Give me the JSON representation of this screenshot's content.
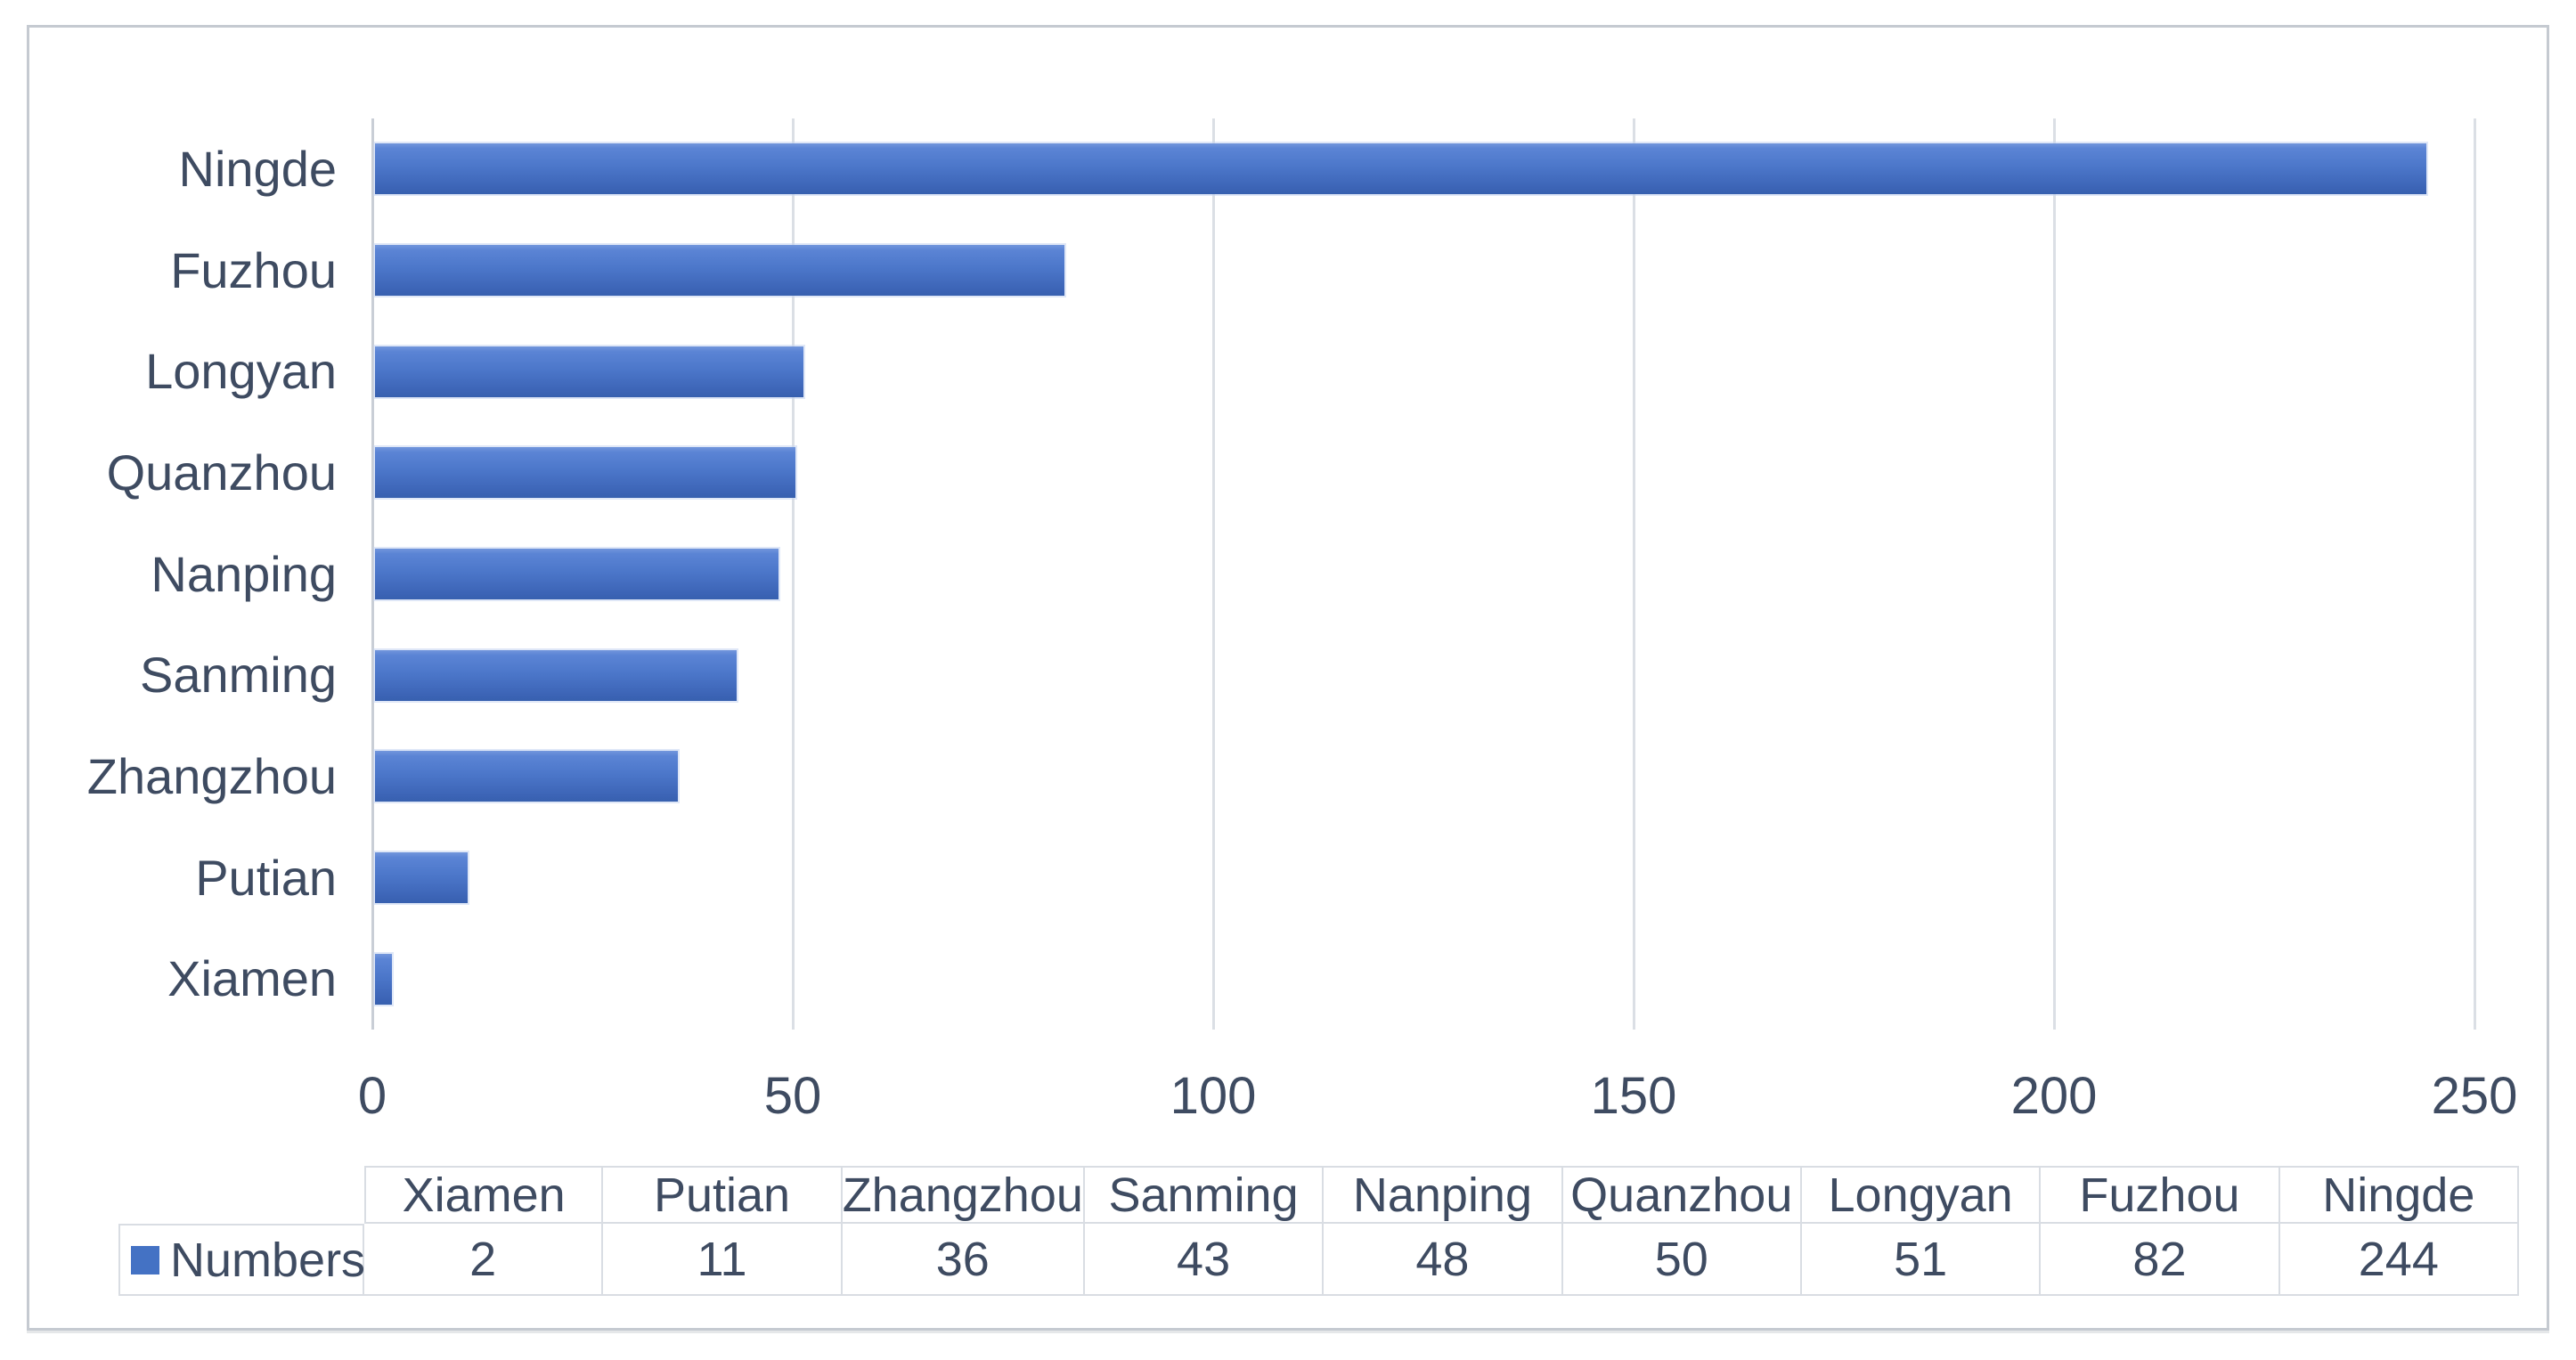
{
  "chart_data": {
    "type": "bar",
    "orientation": "horizontal",
    "title": "",
    "xlabel": "",
    "ylabel": "",
    "categories": [
      "Xiamen",
      "Putian",
      "Zhangzhou",
      "Sanming",
      "Nanping",
      "Quanzhou",
      "Longyan",
      "Fuzhou",
      "Ningde"
    ],
    "series": [
      {
        "name": "Numbers",
        "values": [
          2,
          11,
          36,
          43,
          48,
          50,
          51,
          82,
          244
        ]
      }
    ],
    "display_order_top_to_bottom": [
      "Ningde",
      "Fuzhou",
      "Longyan",
      "Quanzhou",
      "Nanping",
      "Sanming",
      "Zhangzhou",
      "Putian",
      "Xiamen"
    ],
    "xlim": [
      0,
      255
    ],
    "x_ticks": [
      "0",
      "50",
      "100",
      "150",
      "200",
      "250"
    ],
    "x_tick_values": [
      0,
      50,
      100,
      150,
      200,
      250
    ],
    "grid": true,
    "legend_position": "data-table-left",
    "bar_color": "#4472C4"
  },
  "table": {
    "columns": [
      "Xiamen",
      "Putian",
      "Zhangzhou",
      "Sanming",
      "Nanping",
      "Quanzhou",
      "Longyan",
      "Fuzhou",
      "Ningde"
    ],
    "rows": [
      {
        "label": "Numbers",
        "swatch_color": "#4472C4",
        "values": [
          "2",
          "11",
          "36",
          "43",
          "48",
          "50",
          "51",
          "82",
          "244"
        ]
      }
    ]
  },
  "colors": {
    "bar_fill": "#4472C4",
    "bar_gradient_top": "#7296dc",
    "bar_gradient_bottom": "#3760af",
    "text": "#3e4b61",
    "gridline": "#dbdfe5",
    "axis_line": "#c9ced6",
    "table_border": "#d9dde3",
    "frame_border": "#c5cad1",
    "background": "#ffffff"
  }
}
